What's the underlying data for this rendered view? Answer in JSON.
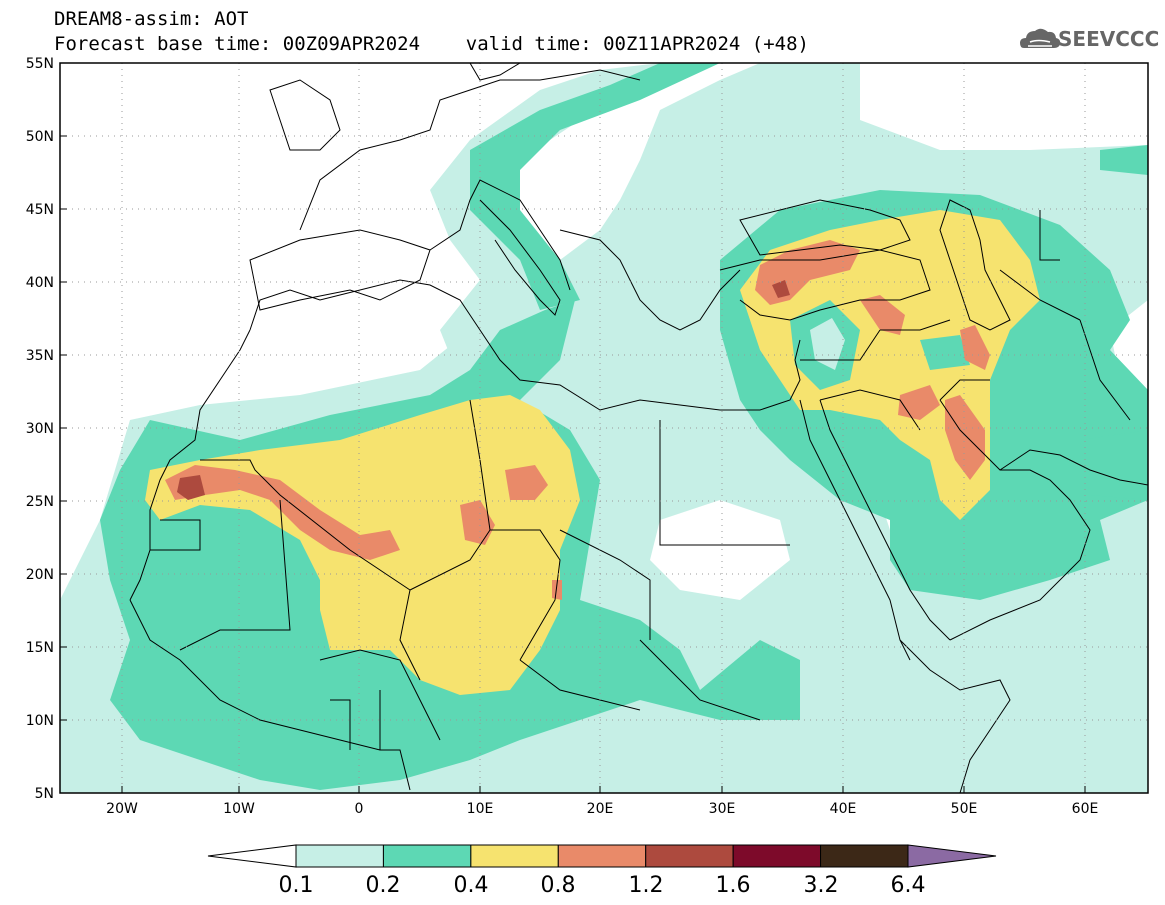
{
  "header": {
    "title_line1": "DREAM8-assim: AOT",
    "title_line2": "Forecast base time: 00Z09APR2024    valid time: 00Z11APR2024 (+48)",
    "logo_text": "SEEVCCC"
  },
  "map": {
    "lat_labels": [
      "55N",
      "50N",
      "45N",
      "40N",
      "35N",
      "30N",
      "25N",
      "20N",
      "15N",
      "10N",
      "5N"
    ],
    "lon_labels": [
      "20W",
      "10W",
      "0",
      "10E",
      "20E",
      "30E",
      "40E",
      "50E",
      "60E"
    ],
    "lon_range": [
      -25,
      65
    ],
    "lat_range": [
      5,
      55
    ],
    "field": "AOT"
  },
  "colorbar": {
    "levels": [
      "0.1",
      "0.2",
      "0.4",
      "0.8",
      "1.2",
      "1.6",
      "3.2",
      "6.4"
    ],
    "colors": [
      "#ffffff",
      "#c6efe6",
      "#5dd8b4",
      "#f6e36f",
      "#e98a69",
      "#ad4a3e",
      "#7d0a2a",
      "#3c2817",
      "#8b6aa3"
    ]
  },
  "colors": {
    "c1": "#c6efe6",
    "c2": "#5dd8b4",
    "c3": "#f6e36f",
    "c4": "#e98a69",
    "c5": "#ad4a3e",
    "c6": "#7d0a2a",
    "ocean_white": "#ffffff"
  }
}
